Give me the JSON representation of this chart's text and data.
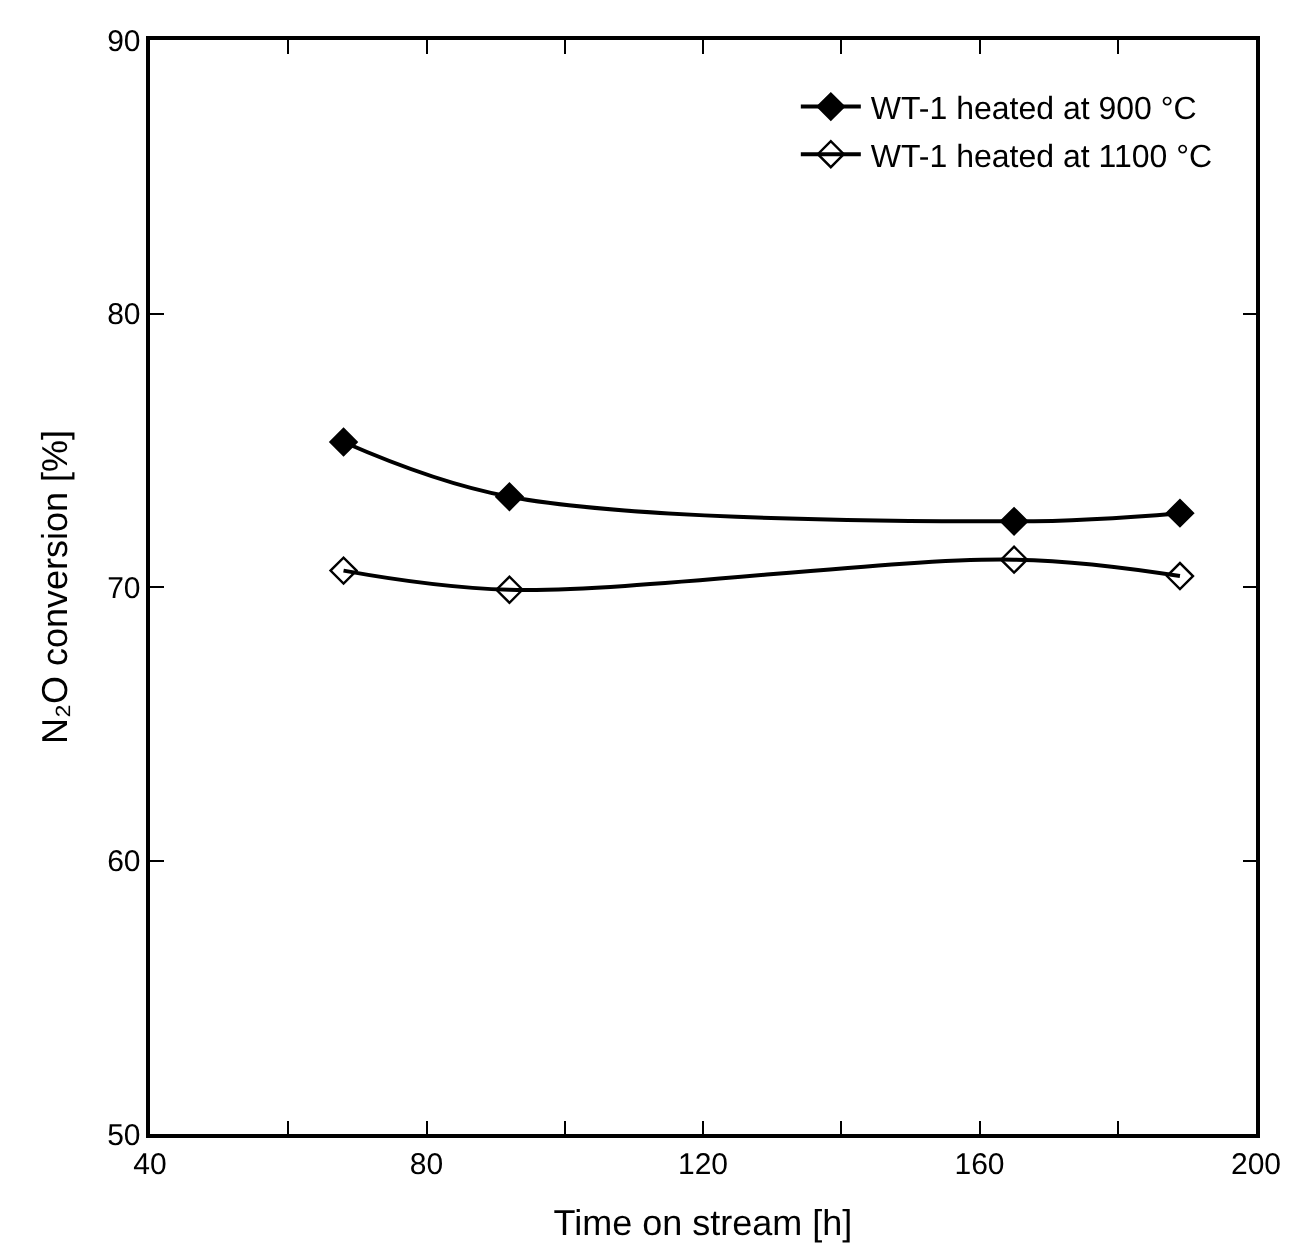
{
  "chart_data": {
    "type": "line",
    "xlabel": "Time on stream [h]",
    "ylabel": "N₂O conversion [%]",
    "x": [
      68,
      92,
      165,
      189
    ],
    "series": [
      {
        "name": "WT-1 heated at 900 °C",
        "color": "#000000",
        "marker": "diamond",
        "values": [
          75.3,
          73.3,
          72.4,
          72.7
        ]
      },
      {
        "name": "WT-1 heated at 1100 °C",
        "color": "#000000",
        "marker": "diamond",
        "values": [
          70.6,
          69.9,
          71.0,
          70.4
        ]
      }
    ],
    "xlim": [
      40,
      200
    ],
    "xticks": [
      40,
      {
        "value": 60,
        "label": null
      },
      80,
      {
        "value": 100,
        "label": null
      },
      120,
      {
        "value": 140,
        "label": null
      },
      160,
      {
        "value": 180,
        "label": null
      },
      200
    ],
    "ylim": [
      50,
      90
    ],
    "yticks": [
      50,
      60,
      70,
      80,
      90
    ],
    "legend": "top right"
  }
}
